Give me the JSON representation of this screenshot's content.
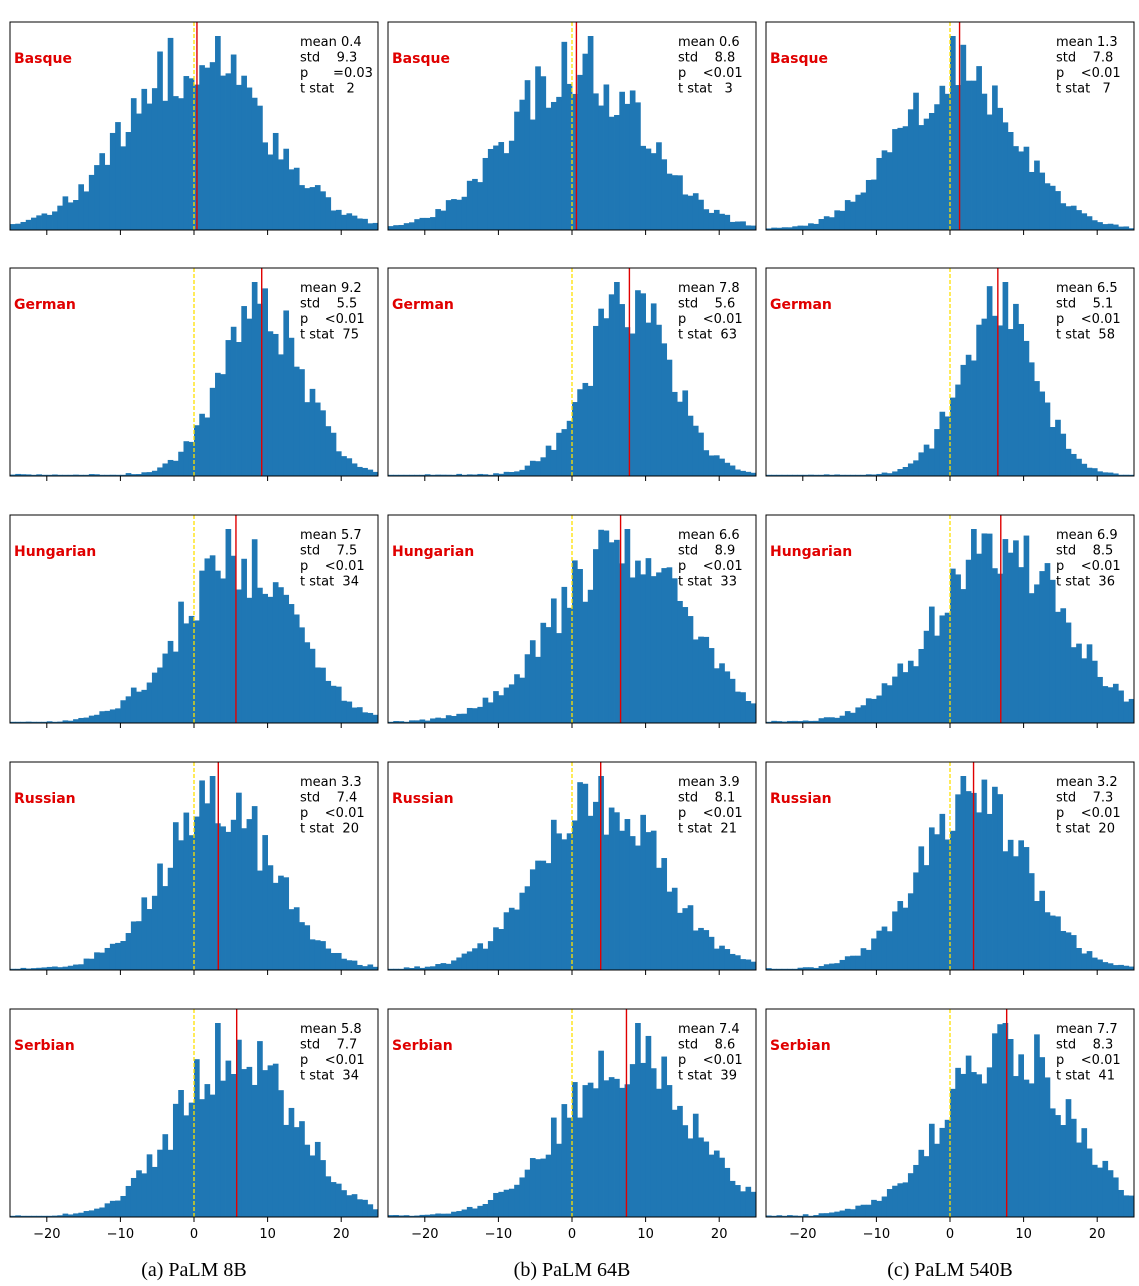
{
  "chart_data": {
    "type": "histogram-grid",
    "x_range": [
      -25,
      25
    ],
    "x_ticks": [
      -20,
      -10,
      0,
      10,
      20
    ],
    "x_tick_labels": [
      "−20",
      "−10",
      "0",
      "10",
      "20"
    ],
    "zero_line_color": "#ffe000",
    "mean_line_color": "#e00000",
    "bar_color": "#1f77b4",
    "columns": [
      {
        "caption": "(a) PaLM 8B",
        "model": "PaLM 8B"
      },
      {
        "caption": "(b) PaLM 64B",
        "model": "PaLM 64B"
      },
      {
        "caption": "(c) PaLM 540B",
        "model": "PaLM 540B"
      }
    ],
    "rows": [
      {
        "language": "Basque",
        "panels": [
          {
            "mean": 0.4,
            "std": 9.3,
            "p": "=0.03",
            "tstat": 2,
            "stats": [
              "mean 0.4",
              "std    9.3",
              "p      =0.03",
              "t stat   2"
            ]
          },
          {
            "mean": 0.6,
            "std": 8.8,
            "p": "<0.01",
            "tstat": 3,
            "stats": [
              "mean 0.6",
              "std    8.8",
              "p    <0.01",
              "t stat   3"
            ]
          },
          {
            "mean": 1.3,
            "std": 7.8,
            "p": "<0.01",
            "tstat": 7,
            "stats": [
              "mean 1.3",
              "std    7.8",
              "p    <0.01",
              "t stat   7"
            ]
          }
        ]
      },
      {
        "language": "German",
        "panels": [
          {
            "mean": 9.2,
            "std": 5.5,
            "p": "<0.01",
            "tstat": 75,
            "stats": [
              "mean 9.2",
              "std    5.5",
              "p    <0.01",
              "t stat  75"
            ]
          },
          {
            "mean": 7.8,
            "std": 5.6,
            "p": "<0.01",
            "tstat": 63,
            "stats": [
              "mean 7.8",
              "std    5.6",
              "p    <0.01",
              "t stat  63"
            ]
          },
          {
            "mean": 6.5,
            "std": 5.1,
            "p": "<0.01",
            "tstat": 58,
            "stats": [
              "mean 6.5",
              "std    5.1",
              "p    <0.01",
              "t stat  58"
            ]
          }
        ]
      },
      {
        "language": "Hungarian",
        "panels": [
          {
            "mean": 5.7,
            "std": 7.5,
            "p": "<0.01",
            "tstat": 34,
            "stats": [
              "mean 5.7",
              "std    7.5",
              "p    <0.01",
              "t stat  34"
            ]
          },
          {
            "mean": 6.6,
            "std": 8.9,
            "p": "<0.01",
            "tstat": 33,
            "stats": [
              "mean 6.6",
              "std    8.9",
              "p    <0.01",
              "t stat  33"
            ]
          },
          {
            "mean": 6.9,
            "std": 8.5,
            "p": "<0.01",
            "tstat": 36,
            "stats": [
              "mean 6.9",
              "std    8.5",
              "p    <0.01",
              "t stat  36"
            ]
          }
        ]
      },
      {
        "language": "Russian",
        "panels": [
          {
            "mean": 3.3,
            "std": 7.4,
            "p": "<0.01",
            "tstat": 20,
            "stats": [
              "mean 3.3",
              "std    7.4",
              "p    <0.01",
              "t stat  20"
            ]
          },
          {
            "mean": 3.9,
            "std": 8.1,
            "p": "<0.01",
            "tstat": 21,
            "stats": [
              "mean 3.9",
              "std    8.1",
              "p    <0.01",
              "t stat  21"
            ]
          },
          {
            "mean": 3.2,
            "std": 7.3,
            "p": "<0.01",
            "tstat": 20,
            "stats": [
              "mean 3.2",
              "std    7.3",
              "p    <0.01",
              "t stat  20"
            ]
          }
        ]
      },
      {
        "language": "Serbian",
        "panels": [
          {
            "mean": 5.8,
            "std": 7.7,
            "p": "<0.01",
            "tstat": 34,
            "stats": [
              "mean 5.8",
              "std    7.7",
              "p    <0.01",
              "t stat  34"
            ]
          },
          {
            "mean": 7.4,
            "std": 8.6,
            "p": "<0.01",
            "tstat": 39,
            "stats": [
              "mean 7.4",
              "std    8.6",
              "p    <0.01",
              "t stat  39"
            ]
          },
          {
            "mean": 7.7,
            "std": 8.3,
            "p": "<0.01",
            "tstat": 41,
            "stats": [
              "mean 7.7",
              "std    8.3",
              "p    <0.01",
              "t stat  41"
            ]
          }
        ]
      }
    ]
  }
}
